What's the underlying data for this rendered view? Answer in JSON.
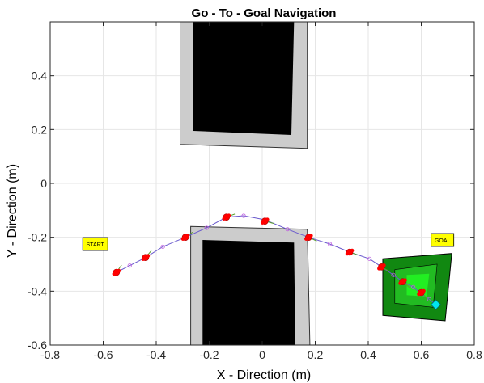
{
  "chart_data": {
    "type": "scatter",
    "title": "Go - To - Goal Navigation",
    "xlabel": "X - Direction (m)",
    "ylabel": "Y - Direction (m)",
    "xlim": [
      -0.8,
      0.8
    ],
    "ylim": [
      -0.6,
      0.6
    ],
    "x_ticks": [
      -0.8,
      -0.6,
      -0.4,
      -0.2,
      0,
      0.2,
      0.4,
      0.6,
      0.8
    ],
    "x_tick_labels": [
      "-0.8",
      "-0.6",
      "-0.4",
      "-0.2",
      "0",
      "0.2",
      "0.4",
      "0.6",
      "0.8"
    ],
    "y_ticks": [
      -0.6,
      -0.4,
      -0.2,
      0,
      0.2,
      0.4
    ],
    "y_tick_labels": [
      "-0.6",
      "-0.4",
      "-0.2",
      "0",
      "0.2",
      "0.4"
    ],
    "grid": true,
    "colors": {
      "obstacle_buffer": "#cccccc",
      "obstacle": "#000000",
      "goal_outer": "#118811",
      "goal_mid": "#22bb22",
      "goal_inner": "#22ee22",
      "path": "#6a5acd",
      "robot": "#ff0000",
      "heading": "#5aa02c",
      "goal_marker": "#00e5ee",
      "label_box": "#ffff00"
    },
    "obstacles": [
      {
        "name": "upper-obstacle",
        "buffer": [
          [
            -0.31,
            0.6
          ],
          [
            -0.17,
            0.6
          ],
          [
            0.17,
            0.6
          ],
          [
            0.17,
            0.13
          ],
          [
            -0.31,
            0.145
          ]
        ],
        "core": [
          [
            -0.26,
            0.6
          ],
          [
            0.12,
            0.6
          ],
          [
            0.11,
            0.18
          ],
          [
            -0.26,
            0.195
          ]
        ]
      },
      {
        "name": "lower-obstacle",
        "buffer": [
          [
            -0.27,
            -0.16
          ],
          [
            0.17,
            -0.17
          ],
          [
            0.18,
            -0.6
          ],
          [
            -0.27,
            -0.6
          ]
        ],
        "core": [
          [
            -0.225,
            -0.21
          ],
          [
            0.12,
            -0.22
          ],
          [
            0.125,
            -0.6
          ],
          [
            -0.225,
            -0.6
          ]
        ]
      }
    ],
    "goal_region": {
      "outer": [
        [
          0.455,
          -0.28
        ],
        [
          0.715,
          -0.26
        ],
        [
          0.69,
          -0.51
        ],
        [
          0.455,
          -0.49
        ]
      ],
      "mid": [
        [
          0.5,
          -0.32
        ],
        [
          0.66,
          -0.3
        ],
        [
          0.645,
          -0.46
        ],
        [
          0.5,
          -0.445
        ]
      ],
      "inner": [
        [
          0.545,
          -0.34
        ],
        [
          0.63,
          -0.335
        ],
        [
          0.62,
          -0.42
        ],
        [
          0.545,
          -0.415
        ]
      ]
    },
    "path": {
      "x": [
        -0.55,
        -0.5,
        -0.44,
        -0.375,
        -0.29,
        -0.21,
        -0.135,
        -0.07,
        0.01,
        0.095,
        0.175,
        0.255,
        0.33,
        0.405,
        0.45,
        0.495,
        0.53,
        0.57,
        0.6,
        0.63,
        0.655
      ],
      "y": [
        -0.33,
        -0.305,
        -0.275,
        -0.235,
        -0.2,
        -0.165,
        -0.125,
        -0.12,
        -0.135,
        -0.17,
        -0.2,
        -0.225,
        -0.255,
        -0.28,
        -0.31,
        -0.34,
        -0.365,
        -0.385,
        -0.41,
        -0.43,
        -0.45
      ]
    },
    "robot_poses": {
      "x": [
        -0.55,
        -0.44,
        -0.29,
        -0.135,
        0.01,
        0.175,
        0.33,
        0.45,
        0.53,
        0.6
      ],
      "y": [
        -0.33,
        -0.275,
        -0.2,
        -0.125,
        -0.14,
        -0.2,
        -0.255,
        -0.31,
        -0.365,
        -0.405
      ],
      "heading_deg": [
        55,
        50,
        35,
        20,
        -15,
        -25,
        -20,
        -30,
        -40,
        -45
      ]
    },
    "goal_point": {
      "x": 0.655,
      "y": -0.45
    },
    "start_label": {
      "text": "START",
      "x": -0.63,
      "y": -0.225
    },
    "goal_label": {
      "text": "GOAL",
      "x": 0.68,
      "y": -0.21
    }
  }
}
